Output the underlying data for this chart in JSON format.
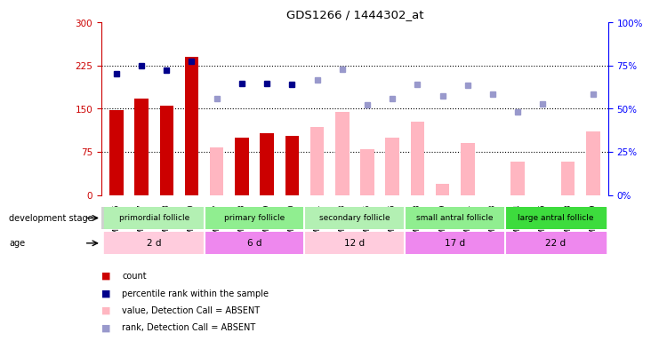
{
  "title": "GDS1266 / 1444302_at",
  "samples": [
    "GSM75735",
    "GSM75737",
    "GSM75738",
    "GSM75740",
    "GSM74067",
    "GSM74068",
    "GSM74069",
    "GSM74070",
    "GSM75741",
    "GSM75743",
    "GSM75745",
    "GSM75746",
    "GSM75748",
    "GSM75749",
    "GSM75751",
    "GSM75753",
    "GSM75754",
    "GSM75756",
    "GSM75758",
    "GSM75759"
  ],
  "count_values": [
    148,
    168,
    155,
    240,
    null,
    100,
    107,
    103,
    null,
    null,
    null,
    null,
    null,
    null,
    null,
    null,
    null,
    null,
    null,
    null
  ],
  "absent_value": [
    null,
    null,
    null,
    null,
    83,
    null,
    null,
    null,
    118,
    145,
    80,
    100,
    128,
    20,
    90,
    null,
    58,
    null,
    58,
    110
  ],
  "percentile_rank_left": [
    210,
    225,
    217,
    232,
    null,
    193,
    193,
    192,
    null,
    null,
    null,
    null,
    null,
    null,
    null,
    null,
    null,
    null,
    null,
    null
  ],
  "absent_rank_left": [
    null,
    null,
    null,
    null,
    168,
    null,
    null,
    null,
    200,
    218,
    157,
    168,
    192,
    172,
    190,
    175,
    144,
    158,
    null,
    175
  ],
  "groups": [
    {
      "label": "primordial follicle",
      "start": 0,
      "end": 4,
      "color": "#b3f0b3"
    },
    {
      "label": "primary follicle",
      "start": 4,
      "end": 8,
      "color": "#90ee90"
    },
    {
      "label": "secondary follicle",
      "start": 8,
      "end": 12,
      "color": "#b3f0b3"
    },
    {
      "label": "small antral follicle",
      "start": 12,
      "end": 16,
      "color": "#90ee90"
    },
    {
      "label": "large antral follicle",
      "start": 16,
      "end": 20,
      "color": "#3ddc3d"
    }
  ],
  "age_colors": [
    "#ffccdd",
    "#ee88ee",
    "#ffccdd",
    "#ee88ee",
    "#ee88ee"
  ],
  "age_labels": [
    "2 d",
    "6 d",
    "12 d",
    "17 d",
    "22 d"
  ],
  "age_starts": [
    0,
    4,
    8,
    12,
    16
  ],
  "age_ends": [
    4,
    8,
    12,
    16,
    20
  ],
  "ylim_left": [
    0,
    300
  ],
  "ylim_right": [
    0,
    100
  ],
  "yticks_left": [
    0,
    75,
    150,
    225,
    300
  ],
  "yticks_right": [
    0,
    25,
    50,
    75,
    100
  ],
  "count_color": "#cc0000",
  "absent_bar_color": "#ffb6c1",
  "percentile_color": "#00008b",
  "absent_rank_color": "#9999cc",
  "bar_width": 0.55
}
